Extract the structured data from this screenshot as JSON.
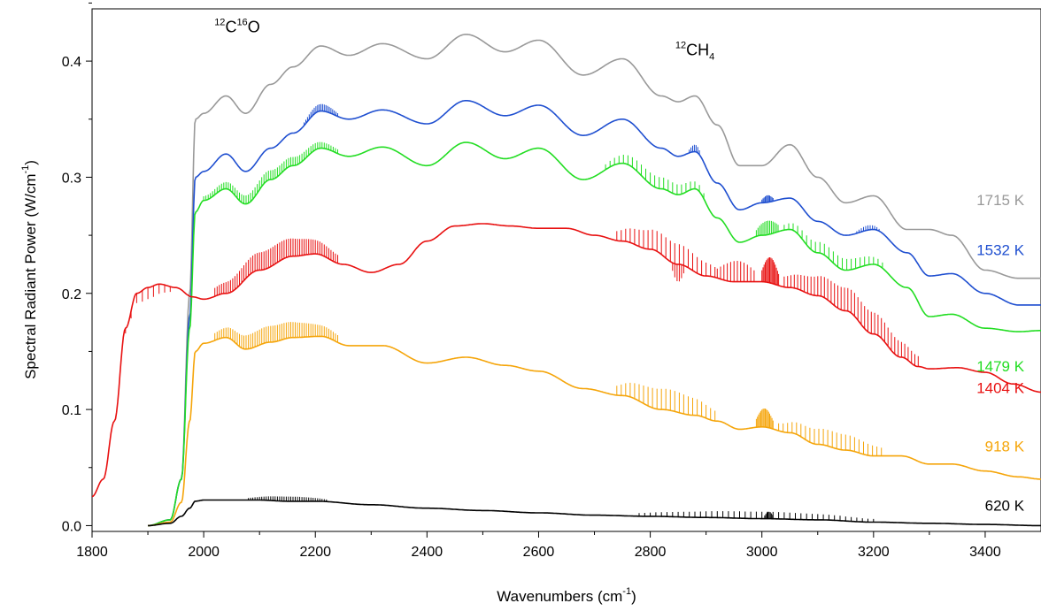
{
  "chart_data": {
    "type": "line",
    "title": "",
    "xlabel": {
      "base": "Wavenumbers (cm",
      "sup": "-1",
      "tail": ")"
    },
    "ylabel": {
      "base": "Spectral Radiant Power (W/cm",
      "sup": "-1",
      "tail": ")"
    },
    "xlim": [
      1800,
      3500
    ],
    "ylim": [
      -0.005,
      0.445
    ],
    "x_ticks": [
      {
        "value": 1800,
        "label": "1800"
      },
      {
        "value": 2000,
        "label": "2000"
      },
      {
        "value": 2200,
        "label": "2200"
      },
      {
        "value": 2400,
        "label": "2400"
      },
      {
        "value": 2600,
        "label": "2600"
      },
      {
        "value": 2800,
        "label": "2800"
      },
      {
        "value": 3000,
        "label": "3000"
      },
      {
        "value": 3200,
        "label": "3200"
      },
      {
        "value": 3400,
        "label": "3400"
      }
    ],
    "y_ticks": [
      {
        "value": 0.0,
        "label": "0.0"
      },
      {
        "value": 0.1,
        "label": "0.1"
      },
      {
        "value": 0.2,
        "label": "0.2"
      },
      {
        "value": 0.3,
        "label": "0.3"
      },
      {
        "value": 0.4,
        "label": "0.4"
      }
    ],
    "grid": false,
    "annotations": [
      {
        "name": "co-annotation",
        "x": 2060,
        "y": 0.425,
        "parts": [
          {
            "t": "12",
            "sup": true
          },
          {
            "t": "C",
            "sup": false
          },
          {
            "t": "16",
            "sup": true
          },
          {
            "t": "O",
            "sup": false
          }
        ]
      },
      {
        "name": "ch4-annotation",
        "x": 2880,
        "y": 0.405,
        "parts": [
          {
            "t": "12",
            "sup": true
          },
          {
            "t": "CH",
            "sup": false
          },
          {
            "t": "4",
            "sub": true
          }
        ]
      }
    ],
    "series": [
      {
        "name": "1715 K",
        "color": "#999999",
        "label_x": 3470,
        "label_y": 0.276,
        "x": [
          1900,
          1940,
          1960,
          1975,
          1985,
          2000,
          2040,
          2075,
          2120,
          2160,
          2210,
          2260,
          2320,
          2400,
          2470,
          2540,
          2600,
          2680,
          2750,
          2820,
          2850,
          2880,
          2920,
          2960,
          3000,
          3050,
          3100,
          3150,
          3200,
          3260,
          3300,
          3340,
          3400,
          3460,
          3500
        ],
        "y": [
          0.0,
          0.005,
          0.04,
          0.2,
          0.35,
          0.355,
          0.37,
          0.355,
          0.38,
          0.395,
          0.413,
          0.405,
          0.415,
          0.402,
          0.423,
          0.408,
          0.418,
          0.388,
          0.402,
          0.37,
          0.365,
          0.37,
          0.345,
          0.31,
          0.31,
          0.328,
          0.3,
          0.278,
          0.284,
          0.255,
          0.255,
          0.25,
          0.22,
          0.213,
          0.213
        ],
        "ripples": []
      },
      {
        "name": "1532 K",
        "color": "#1f4fd0",
        "label_x": 3470,
        "label_y": 0.233,
        "x": [
          1900,
          1940,
          1960,
          1975,
          1985,
          2000,
          2040,
          2075,
          2120,
          2160,
          2210,
          2260,
          2320,
          2400,
          2470,
          2540,
          2600,
          2680,
          2750,
          2820,
          2850,
          2880,
          2920,
          2960,
          3000,
          3050,
          3100,
          3150,
          3200,
          3260,
          3300,
          3340,
          3400,
          3460,
          3500
        ],
        "y": [
          0.0,
          0.005,
          0.04,
          0.18,
          0.3,
          0.305,
          0.32,
          0.305,
          0.325,
          0.338,
          0.357,
          0.35,
          0.358,
          0.346,
          0.366,
          0.353,
          0.362,
          0.336,
          0.35,
          0.325,
          0.318,
          0.322,
          0.295,
          0.272,
          0.278,
          0.282,
          0.262,
          0.25,
          0.255,
          0.235,
          0.215,
          0.217,
          0.2,
          0.19,
          0.19
        ],
        "ripples": [
          {
            "x0": 2180,
            "x1": 2240,
            "step": 3,
            "amp": 0.006
          },
          {
            "x0": 2870,
            "x1": 2890,
            "step": 3,
            "amp": 0.006
          },
          {
            "x0": 3000,
            "x1": 3020,
            "step": 2,
            "amp": 0.006
          },
          {
            "x0": 3170,
            "x1": 3210,
            "step": 4,
            "amp": 0.004
          }
        ]
      },
      {
        "name": "1479 K",
        "color": "#22dd22",
        "label_x": 3470,
        "label_y": 0.133,
        "x": [
          1900,
          1940,
          1960,
          1975,
          1985,
          2000,
          2040,
          2075,
          2120,
          2160,
          2210,
          2260,
          2320,
          2400,
          2470,
          2540,
          2600,
          2680,
          2750,
          2820,
          2850,
          2880,
          2920,
          2960,
          3000,
          3050,
          3100,
          3150,
          3200,
          3260,
          3300,
          3340,
          3400,
          3460,
          3500
        ],
        "y": [
          0.0,
          0.005,
          0.04,
          0.17,
          0.27,
          0.28,
          0.29,
          0.277,
          0.298,
          0.31,
          0.325,
          0.318,
          0.326,
          0.31,
          0.33,
          0.316,
          0.325,
          0.298,
          0.312,
          0.29,
          0.285,
          0.29,
          0.265,
          0.244,
          0.25,
          0.255,
          0.235,
          0.22,
          0.225,
          0.205,
          0.18,
          0.182,
          0.17,
          0.167,
          0.168
        ],
        "ripples": [
          {
            "x0": 2000,
            "x1": 2240,
            "step": 4,
            "amp": 0.008
          },
          {
            "x0": 2720,
            "x1": 2900,
            "step": 8,
            "amp": 0.01
          },
          {
            "x0": 2990,
            "x1": 3030,
            "step": 3,
            "amp": 0.012
          },
          {
            "x0": 3040,
            "x1": 3220,
            "step": 8,
            "amp": 0.01
          }
        ]
      },
      {
        "name": "1404 K",
        "color": "#e81010",
        "label_x": 3470,
        "label_y": 0.114,
        "x": [
          1800,
          1820,
          1840,
          1860,
          1880,
          1900,
          1920,
          1950,
          1980,
          2000,
          2040,
          2100,
          2160,
          2200,
          2250,
          2300,
          2350,
          2400,
          2450,
          2500,
          2550,
          2600,
          2650,
          2700,
          2750,
          2800,
          2850,
          2900,
          2950,
          3000,
          3050,
          3100,
          3150,
          3200,
          3250,
          3280,
          3300,
          3350,
          3400,
          3450,
          3500
        ],
        "y": [
          0.025,
          0.04,
          0.09,
          0.17,
          0.2,
          0.205,
          0.208,
          0.205,
          0.197,
          0.195,
          0.2,
          0.22,
          0.232,
          0.234,
          0.225,
          0.218,
          0.225,
          0.245,
          0.258,
          0.26,
          0.258,
          0.256,
          0.256,
          0.25,
          0.245,
          0.238,
          0.225,
          0.215,
          0.21,
          0.21,
          0.205,
          0.198,
          0.185,
          0.165,
          0.145,
          0.137,
          0.135,
          0.136,
          0.132,
          0.122,
          0.115
        ],
        "ripples": [
          {
            "x0": 1860,
            "x1": 1940,
            "step": 10,
            "amp": -0.01
          },
          {
            "x0": 2020,
            "x1": 2240,
            "step": 4,
            "amp": 0.016
          },
          {
            "x0": 2740,
            "x1": 2920,
            "step": 8,
            "amp": 0.018
          },
          {
            "x0": 2840,
            "x1": 2860,
            "step": 4,
            "amp": -0.015
          },
          {
            "x0": 2920,
            "x1": 2990,
            "step": 6,
            "amp": 0.018
          },
          {
            "x0": 3000,
            "x1": 3030,
            "step": 2,
            "amp": 0.022
          },
          {
            "x0": 3040,
            "x1": 3280,
            "step": 6,
            "amp": 0.02
          }
        ]
      },
      {
        "name": "918 K",
        "color": "#f5a50a",
        "label_x": 3470,
        "label_y": 0.064,
        "x": [
          1900,
          1940,
          1960,
          1975,
          1985,
          2000,
          2040,
          2075,
          2120,
          2160,
          2210,
          2260,
          2320,
          2400,
          2470,
          2540,
          2600,
          2680,
          2750,
          2820,
          2880,
          2920,
          2960,
          3000,
          3050,
          3100,
          3150,
          3200,
          3250,
          3300,
          3340,
          3400,
          3460,
          3500
        ],
        "y": [
          0.0,
          0.003,
          0.02,
          0.09,
          0.15,
          0.157,
          0.162,
          0.152,
          0.158,
          0.162,
          0.163,
          0.155,
          0.155,
          0.14,
          0.145,
          0.138,
          0.133,
          0.118,
          0.112,
          0.1,
          0.095,
          0.09,
          0.083,
          0.085,
          0.08,
          0.07,
          0.065,
          0.06,
          0.06,
          0.053,
          0.053,
          0.047,
          0.042,
          0.04
        ],
        "ripples": [
          {
            "x0": 2020,
            "x1": 2240,
            "step": 4,
            "amp": 0.014
          },
          {
            "x0": 2740,
            "x1": 2920,
            "step": 8,
            "amp": 0.018
          },
          {
            "x0": 2990,
            "x1": 3020,
            "step": 2,
            "amp": 0.016
          },
          {
            "x0": 3030,
            "x1": 3220,
            "step": 8,
            "amp": 0.014
          }
        ]
      },
      {
        "name": "620 K",
        "color": "#000000",
        "label_x": 3470,
        "label_y": 0.013,
        "x": [
          1900,
          1940,
          1960,
          1975,
          1985,
          2000,
          2050,
          2100,
          2150,
          2200,
          2300,
          2400,
          2500,
          2600,
          2700,
          2800,
          2900,
          3000,
          3100,
          3200,
          3300,
          3400,
          3500
        ],
        "y": [
          0.0,
          0.002,
          0.008,
          0.015,
          0.021,
          0.022,
          0.022,
          0.022,
          0.021,
          0.021,
          0.018,
          0.015,
          0.013,
          0.011,
          0.009,
          0.008,
          0.007,
          0.006,
          0.005,
          0.003,
          0.002,
          0.001,
          0.0
        ],
        "ripples": [
          {
            "x0": 2080,
            "x1": 2220,
            "step": 4,
            "amp": 0.004
          },
          {
            "x0": 2780,
            "x1": 3200,
            "step": 10,
            "amp": 0.006
          },
          {
            "x0": 3005,
            "x1": 3020,
            "step": 2,
            "amp": 0.006
          }
        ]
      }
    ]
  }
}
